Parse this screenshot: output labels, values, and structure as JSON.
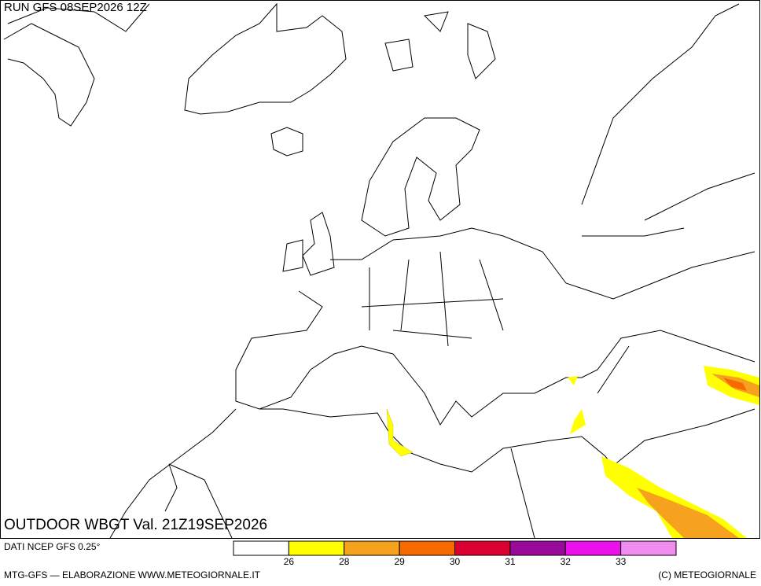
{
  "header": {
    "run": "RUN GFS 08SEP2026 12Z"
  },
  "map": {
    "title": "OUTDOOR WBGT Val. 21Z19SEP2026"
  },
  "legend": {
    "source": "DATI NCEP GFS 0.25°",
    "colors": [
      "#ffffff",
      "#ffff00",
      "#f7a21e",
      "#f76a00",
      "#dc0030",
      "#9a0a9a",
      "#ec10ec",
      "#f08cf0"
    ],
    "ticks": [
      26,
      28,
      29,
      30,
      31,
      32,
      33
    ]
  },
  "footer": {
    "left": "MTG-GFS — ELABORAZIONE WWW.METEOGIORNALE.IT",
    "right": "(C) METEOGIORNALE"
  }
}
